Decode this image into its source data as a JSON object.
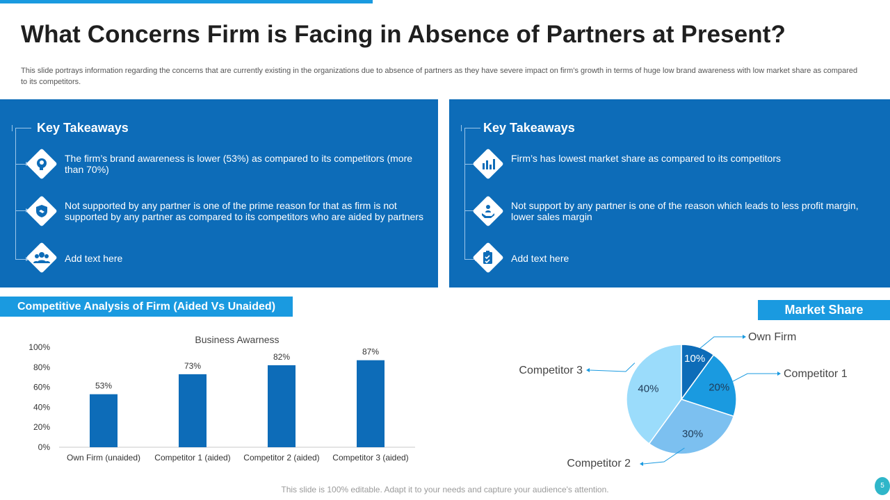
{
  "title": "What Concerns Firm is Facing in Absence of Partners at Present?",
  "subtitle": "This slide portrays information regarding the concerns that are currently existing in the organizations due to absence of partners as they have severe impact on firm’s growth in terms of huge low brand awareness with low market share as compared to its competitors.",
  "left_panel": {
    "heading": "Key Takeaways",
    "items": [
      {
        "icon": "head-brain-icon",
        "text": "The firm’s brand awareness is lower (53%) as compared to its competitors (more than 70%)"
      },
      {
        "icon": "handshake-shield-icon",
        "text": "Not supported by any partner is one of the prime reason for that as firm is not supported by any partner as compared to its competitors who are aided by partners"
      },
      {
        "icon": "team-icon",
        "text": "Add text here"
      }
    ]
  },
  "right_panel": {
    "heading": "Key Takeaways",
    "items": [
      {
        "icon": "bar-chart-icon",
        "text": "Firm’s has lowest market share as compared to its competitors"
      },
      {
        "icon": "hand-person-icon",
        "text": "Not support by any partner is one of the reason which leads to less profit margin, lower sales margin"
      },
      {
        "icon": "checklist-icon",
        "text": "Add text here"
      }
    ]
  },
  "bar_section_title": "Competitive Analysis of Firm (Aided Vs Unaided)",
  "pie_section_title": "Market Share",
  "chart_data": [
    {
      "type": "bar",
      "title": "Business Awarness",
      "categories": [
        "Own Firm (unaided)",
        "Competitor 1 (aided)",
        "Competitor 2 (aided)",
        "Competitor 3 (aided)"
      ],
      "values": [
        53,
        73,
        82,
        87
      ],
      "data_labels": [
        "53%",
        "73%",
        "82%",
        "87%"
      ],
      "ylim": [
        0,
        100
      ],
      "yticks": [
        "0%",
        "20%",
        "40%",
        "60%",
        "80%",
        "100%"
      ],
      "xlabel": "",
      "ylabel": "",
      "color": "#0d6cb8"
    },
    {
      "type": "pie",
      "title": "Market Share",
      "labels": [
        "Own Firm",
        "Competitor 1",
        "Competitor 2",
        "Competitor 3"
      ],
      "values": [
        10,
        20,
        30,
        40
      ],
      "data_labels": [
        "10%",
        "20%",
        "30%",
        "40%"
      ],
      "colors": [
        "#0d6cb8",
        "#1a9ae0",
        "#7cc0f0",
        "#9bdcfb"
      ]
    }
  ],
  "footer": "This slide is 100% editable. Adapt it to your needs and capture your audience's attention.",
  "page_number": "5"
}
